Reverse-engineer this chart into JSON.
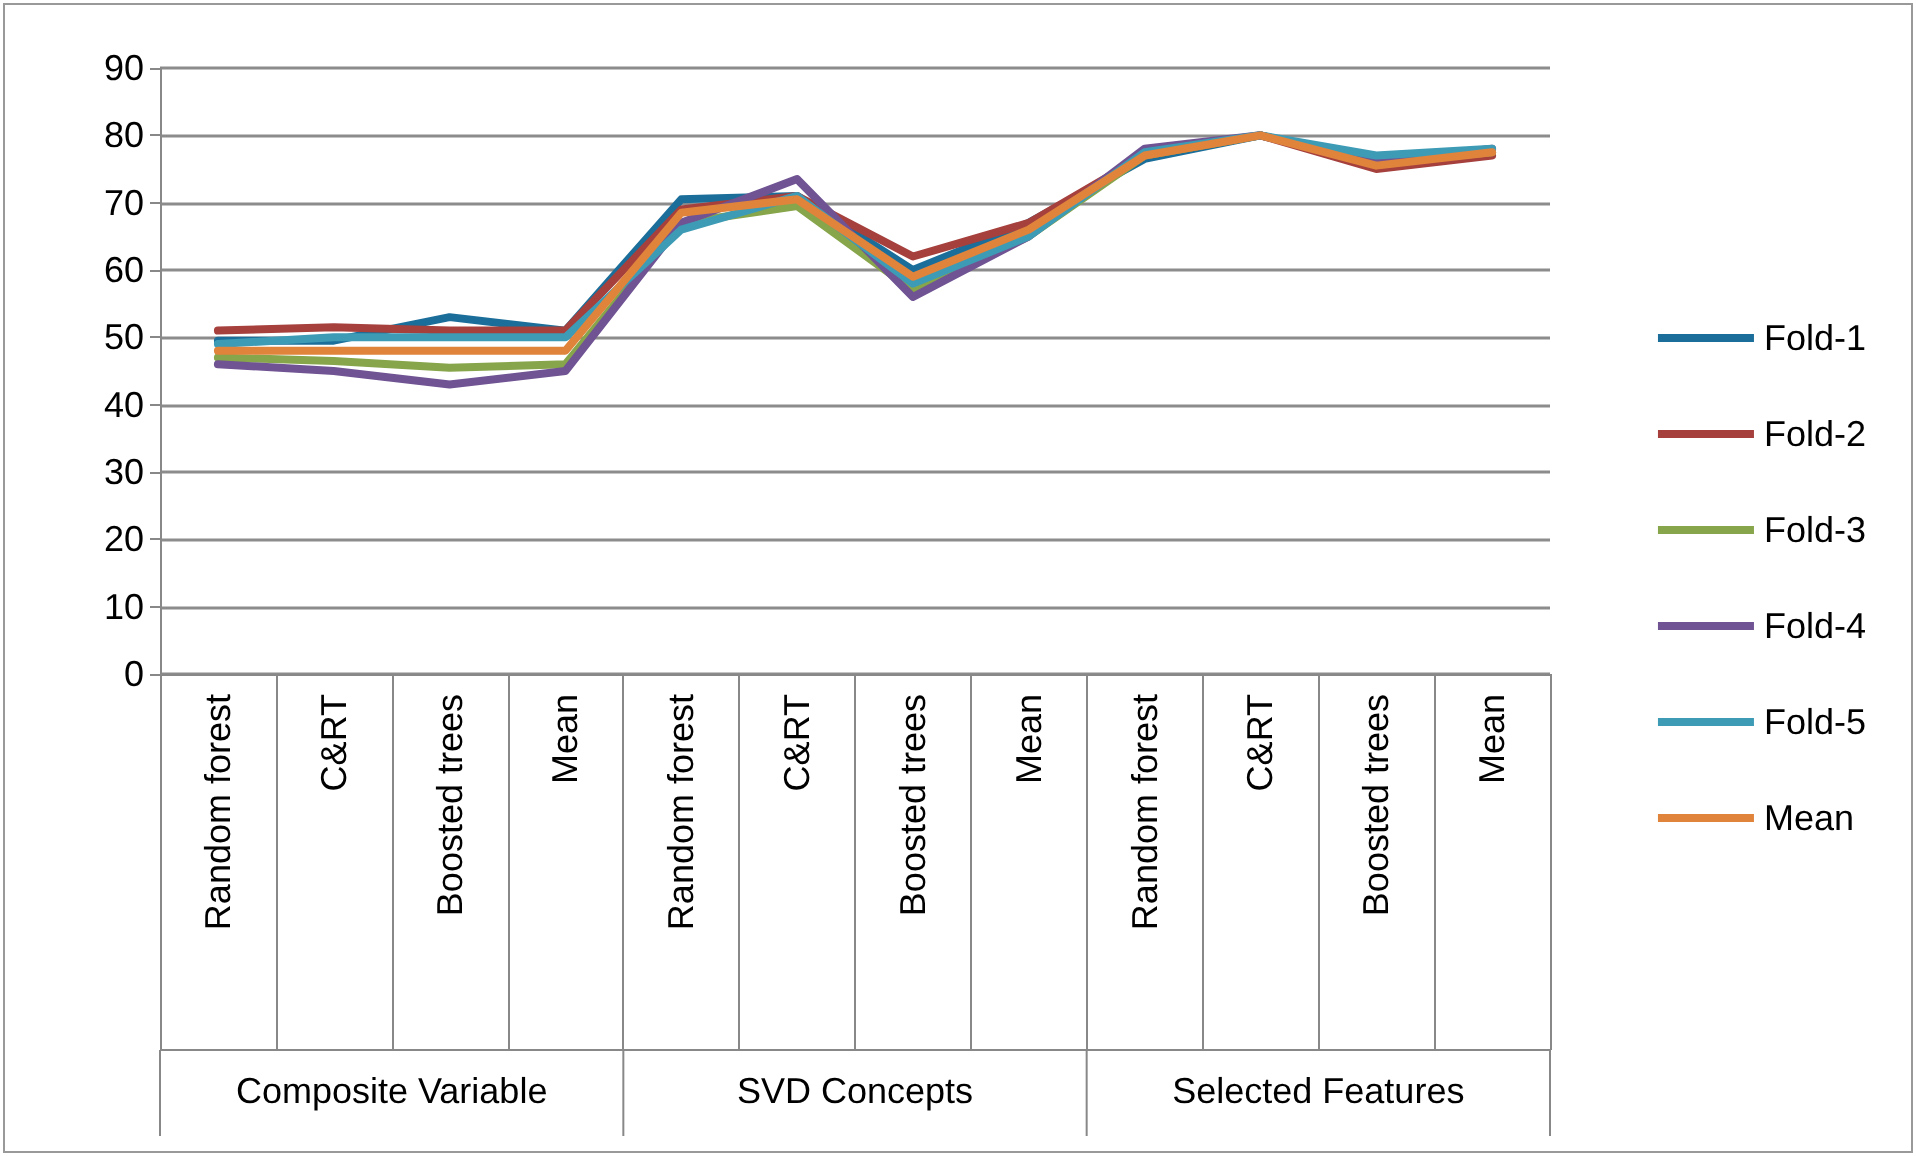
{
  "chart_data": {
    "type": "line",
    "categories": [
      "Random forest",
      "C&RT",
      "Boosted trees",
      "Mean",
      "Random forest",
      "C&RT",
      "Boosted trees",
      "Mean",
      "Random forest",
      "C&RT",
      "Boosted trees",
      "Mean"
    ],
    "annotations": [
      "Composite Variable",
      "SVD Concepts",
      "Selected Features"
    ],
    "series": [
      {
        "name": "Fold-1",
        "color": "#1b6e9a",
        "values": [
          49.5,
          49.5,
          53,
          51,
          70.5,
          71,
          60,
          67,
          76.5,
          80,
          76,
          77.5
        ]
      },
      {
        "name": "Fold-2",
        "color": "#a5403d",
        "values": [
          51,
          51.5,
          51,
          51,
          69,
          71,
          62,
          67,
          77,
          80,
          75,
          77
        ]
      },
      {
        "name": "Fold-3",
        "color": "#87a54a",
        "values": [
          47,
          46.5,
          45.5,
          46,
          67,
          69.5,
          57,
          65,
          77,
          80,
          76,
          77.5
        ]
      },
      {
        "name": "Fold-4",
        "color": "#6f5393",
        "values": [
          46,
          45,
          43,
          45,
          67,
          73.5,
          56,
          65,
          78,
          80,
          76,
          78
        ]
      },
      {
        "name": "Fold-5",
        "color": "#3d9bb5",
        "values": [
          49,
          50,
          50,
          50,
          66,
          71,
          58,
          65,
          77.5,
          80,
          77,
          78
        ]
      },
      {
        "name": "Mean",
        "color": "#e0843c",
        "values": [
          48,
          48,
          48,
          48,
          68.5,
          70.5,
          59,
          66,
          77,
          80,
          75.5,
          77.5
        ]
      }
    ],
    "ylim": [
      0,
      90
    ],
    "yticks": [
      0,
      10,
      20,
      30,
      40,
      50,
      60,
      70,
      80,
      90
    ],
    "grid": "y",
    "legend": "right",
    "marker": "none",
    "line_style": "solid"
  }
}
